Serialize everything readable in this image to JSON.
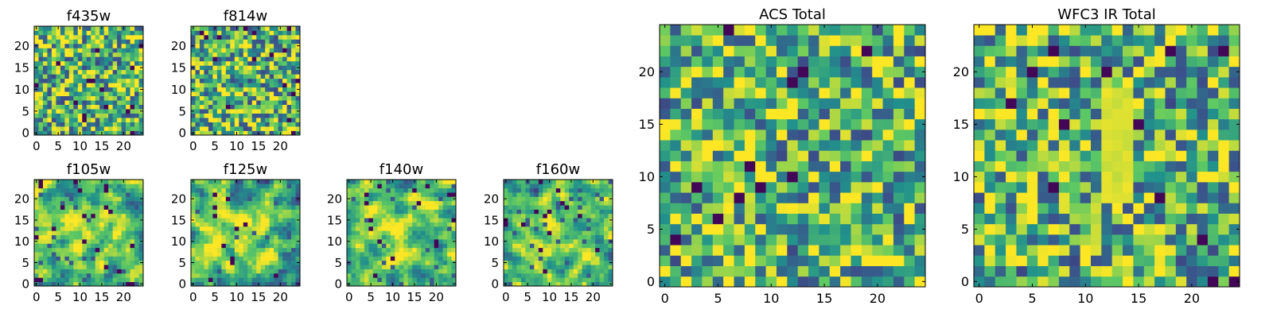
{
  "figure": {
    "background": "#ffffff",
    "colormap": "viridis",
    "colormap_stops": [
      "#440154",
      "#3b528b",
      "#21918c",
      "#5ec962",
      "#fde725"
    ]
  },
  "chart_data": [
    {
      "type": "heatmap",
      "title": "f435w",
      "grid_size": [
        25,
        25
      ],
      "xlim": [
        -0.5,
        24.5
      ],
      "ylim": [
        -0.5,
        24.5
      ],
      "xticks": [
        0,
        5,
        10,
        15,
        20
      ],
      "yticks": [
        0,
        5,
        10,
        15,
        20
      ],
      "pattern": "noise",
      "seed": 11,
      "dark_fraction": 0.06,
      "center_boost": 0.0,
      "vertical_band": null
    },
    {
      "type": "heatmap",
      "title": "f814w",
      "grid_size": [
        25,
        25
      ],
      "xlim": [
        -0.5,
        24.5
      ],
      "ylim": [
        -0.5,
        24.5
      ],
      "xticks": [
        0,
        5,
        10,
        15,
        20
      ],
      "yticks": [
        0,
        5,
        10,
        15,
        20
      ],
      "pattern": "noise",
      "seed": 29,
      "dark_fraction": 0.06,
      "center_boost": 0.0,
      "vertical_band": null
    },
    {
      "type": "heatmap",
      "title": "f105w",
      "grid_size": [
        25,
        25
      ],
      "xlim": [
        -0.5,
        24.5
      ],
      "ylim": [
        -0.5,
        24.5
      ],
      "xticks": [
        0,
        5,
        10,
        15,
        20
      ],
      "yticks": [
        0,
        5,
        10,
        15,
        20
      ],
      "pattern": "smooth",
      "seed": 37,
      "dark_fraction": 0.05,
      "center_boost": 0.35,
      "vertical_band": null
    },
    {
      "type": "heatmap",
      "title": "f125w",
      "grid_size": [
        25,
        25
      ],
      "xlim": [
        -0.5,
        24.5
      ],
      "ylim": [
        -0.5,
        24.5
      ],
      "xticks": [
        0,
        5,
        10,
        15,
        20
      ],
      "yticks": [
        0,
        5,
        10,
        15,
        20
      ],
      "pattern": "smooth",
      "seed": 53,
      "dark_fraction": 0.05,
      "center_boost": 0.35,
      "vertical_band": null
    },
    {
      "type": "heatmap",
      "title": "f140w",
      "grid_size": [
        25,
        25
      ],
      "xlim": [
        -0.5,
        24.5
      ],
      "ylim": [
        -0.5,
        24.5
      ],
      "xticks": [
        0,
        5,
        10,
        15,
        20
      ],
      "yticks": [
        0,
        5,
        10,
        15,
        20
      ],
      "pattern": "smooth",
      "seed": 71,
      "dark_fraction": 0.06,
      "center_boost": 0.3,
      "vertical_band": null
    },
    {
      "type": "heatmap",
      "title": "f160w",
      "grid_size": [
        25,
        25
      ],
      "xlim": [
        -0.5,
        24.5
      ],
      "ylim": [
        -0.5,
        24.5
      ],
      "xticks": [
        0,
        5,
        10,
        15,
        20
      ],
      "yticks": [
        0,
        5,
        10,
        15,
        20
      ],
      "pattern": "smooth",
      "seed": 89,
      "dark_fraction": 0.06,
      "center_boost": 0.3,
      "vertical_band": null
    },
    {
      "type": "heatmap",
      "title": "ACS Total",
      "grid_size": [
        25,
        25
      ],
      "xlim": [
        -0.5,
        24.5
      ],
      "ylim": [
        -0.5,
        24.5
      ],
      "xticks": [
        0,
        5,
        10,
        15,
        20
      ],
      "yticks": [
        0,
        5,
        10,
        15,
        20
      ],
      "pattern": "noise",
      "seed": 101,
      "dark_fraction": 0.04,
      "center_boost": 0.0,
      "vertical_band": null
    },
    {
      "type": "heatmap",
      "title": "WFC3 IR Total",
      "grid_size": [
        25,
        25
      ],
      "xlim": [
        -0.5,
        24.5
      ],
      "ylim": [
        -0.5,
        24.5
      ],
      "xticks": [
        0,
        5,
        10,
        15,
        20
      ],
      "yticks": [
        0,
        5,
        10,
        15,
        20
      ],
      "pattern": "noise",
      "seed": 131,
      "dark_fraction": 0.05,
      "center_boost": 0.0,
      "vertical_band": {
        "x_range": [
          12,
          14
        ],
        "y_range": [
          8,
          18
        ]
      }
    }
  ]
}
